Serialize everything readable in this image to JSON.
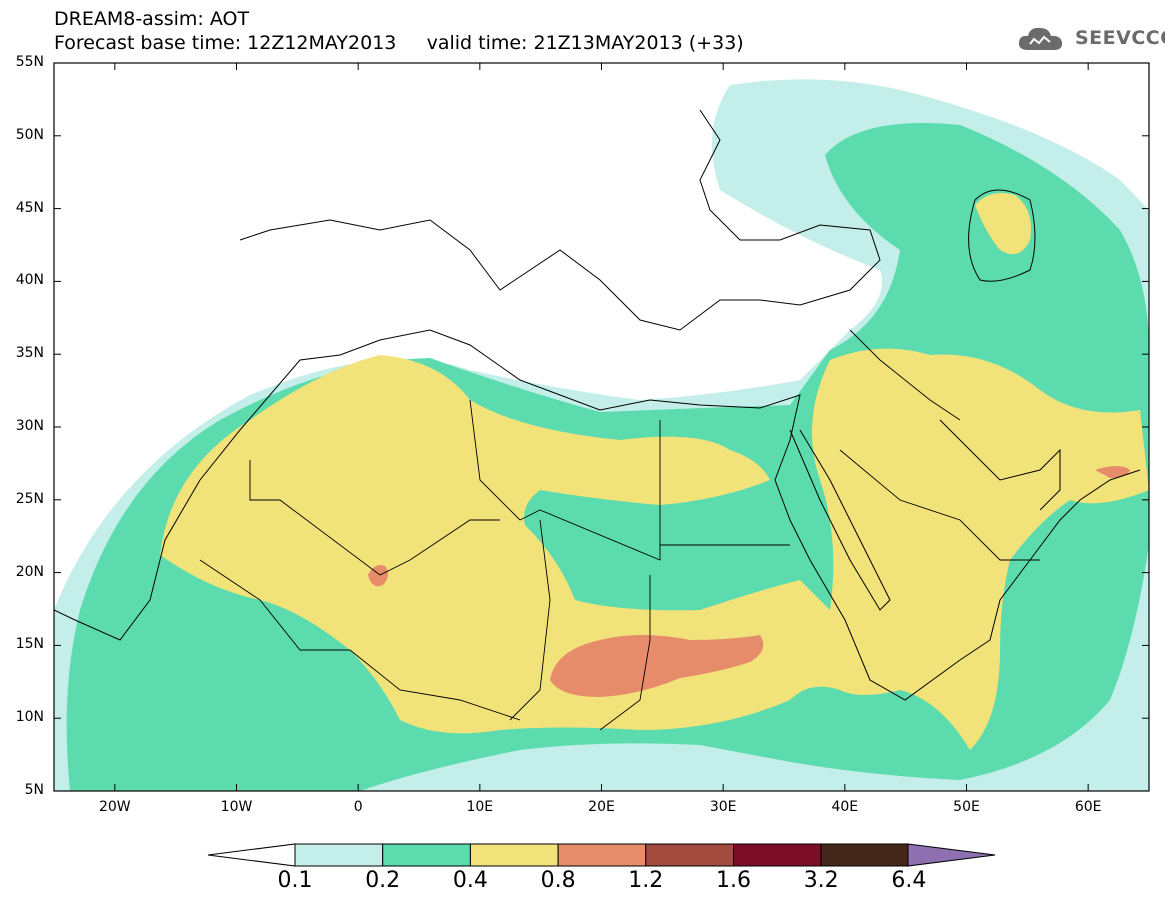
{
  "header": {
    "line1": "DREAM8-assim: AOT",
    "line2": "Forecast base time: 12Z12MAY2013     valid time: 21Z13MAY2013 (+33)",
    "logo_text": "SEEVCCC",
    "logo_icon": "cloud-icon"
  },
  "map": {
    "lon_range": [
      -25,
      65
    ],
    "lat_range": [
      5,
      55
    ],
    "lat_labels": [
      "5N",
      "10N",
      "15N",
      "20N",
      "25N",
      "30N",
      "35N",
      "40N",
      "45N",
      "50N",
      "55N"
    ],
    "lon_labels": [
      "20W",
      "10W",
      "0",
      "10E",
      "20E",
      "30E",
      "40E",
      "50E",
      "60E"
    ]
  },
  "colorbar": {
    "labels": [
      "0.1",
      "0.2",
      "0.4",
      "0.8",
      "1.2",
      "1.6",
      "3.2",
      "6.4"
    ],
    "colors": [
      "#c3eee9",
      "#5cdcae",
      "#f2e27a",
      "#e68c6a",
      "#a44b3f",
      "#7c0d28",
      "#45261a",
      "#8e70b1"
    ],
    "under_color": "#ffffff"
  }
}
